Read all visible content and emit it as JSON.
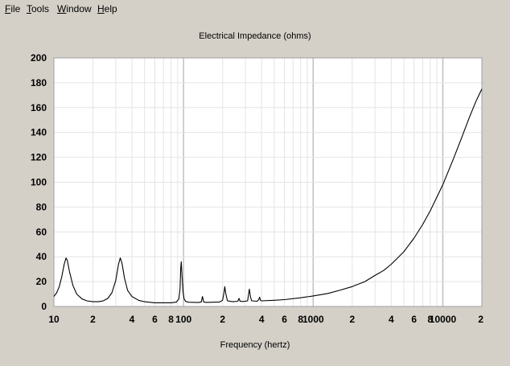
{
  "menu": {
    "file": {
      "first": "F",
      "rest": "ile"
    },
    "tools": {
      "first": "T",
      "rest": "ools"
    },
    "window": {
      "first": "W",
      "rest": "indow"
    },
    "help": {
      "first": "H",
      "rest": "elp"
    }
  },
  "chart_data": {
    "type": "line",
    "title": "Electrical Impedance (ohms)",
    "xlabel": "Frequency (hertz)",
    "ylabel": "",
    "x_scale": "log",
    "xlim": [
      10,
      20000
    ],
    "ylim": [
      0,
      200
    ],
    "grid": true,
    "y_ticks": [
      0,
      20,
      40,
      60,
      80,
      100,
      120,
      140,
      160,
      180,
      200
    ],
    "x_ticks": [
      {
        "value": 10,
        "label": "10"
      },
      {
        "value": 20,
        "label": "2"
      },
      {
        "value": 40,
        "label": "4"
      },
      {
        "value": 60,
        "label": "6"
      },
      {
        "value": 80,
        "label": "8"
      },
      {
        "value": 100,
        "label": "100"
      },
      {
        "value": 200,
        "label": "2"
      },
      {
        "value": 400,
        "label": "4"
      },
      {
        "value": 600,
        "label": "6"
      },
      {
        "value": 800,
        "label": "8"
      },
      {
        "value": 1000,
        "label": "1000"
      },
      {
        "value": 2000,
        "label": "2"
      },
      {
        "value": 4000,
        "label": "4"
      },
      {
        "value": 6000,
        "label": "6"
      },
      {
        "value": 8000,
        "label": "8"
      },
      {
        "value": 10000,
        "label": "10000"
      },
      {
        "value": 20000,
        "label": "2"
      }
    ],
    "series": [
      {
        "color": "#000000",
        "points": [
          [
            10,
            8
          ],
          [
            10.5,
            11
          ],
          [
            11,
            16
          ],
          [
            11.5,
            24
          ],
          [
            12,
            34
          ],
          [
            12.4,
            39
          ],
          [
            12.7,
            37
          ],
          [
            13.2,
            28
          ],
          [
            14,
            17
          ],
          [
            15,
            10
          ],
          [
            16.5,
            6
          ],
          [
            18,
            4.5
          ],
          [
            20,
            3.8
          ],
          [
            22,
            3.8
          ],
          [
            24,
            4.5
          ],
          [
            26,
            6.5
          ],
          [
            28,
            11
          ],
          [
            30,
            21
          ],
          [
            31.5,
            34
          ],
          [
            32.5,
            39
          ],
          [
            33.5,
            35
          ],
          [
            35,
            23
          ],
          [
            37,
            13
          ],
          [
            40,
            8
          ],
          [
            45,
            5
          ],
          [
            50,
            3.8
          ],
          [
            60,
            3
          ],
          [
            70,
            3
          ],
          [
            80,
            3
          ],
          [
            88,
            3.5
          ],
          [
            92,
            6
          ],
          [
            94,
            14
          ],
          [
            95,
            30
          ],
          [
            96,
            36
          ],
          [
            97,
            28
          ],
          [
            99,
            12
          ],
          [
            101,
            6
          ],
          [
            104,
            4
          ],
          [
            110,
            3.4
          ],
          [
            130,
            3.2
          ],
          [
            137,
            3.6
          ],
          [
            140,
            8
          ],
          [
            143,
            3.6
          ],
          [
            150,
            3.3
          ],
          [
            190,
            3.6
          ],
          [
            200,
            5
          ],
          [
            205,
            11
          ],
          [
            208,
            16
          ],
          [
            212,
            10
          ],
          [
            218,
            4.5
          ],
          [
            240,
            3.8
          ],
          [
            262,
            4.2
          ],
          [
            268,
            6.5
          ],
          [
            273,
            4.2
          ],
          [
            290,
            4
          ],
          [
            312,
            4.5
          ],
          [
            318,
            10
          ],
          [
            322,
            14
          ],
          [
            328,
            8
          ],
          [
            335,
            4.5
          ],
          [
            370,
            4.2
          ],
          [
            380,
            5.5
          ],
          [
            386,
            7.5
          ],
          [
            392,
            5
          ],
          [
            400,
            4.5
          ],
          [
            500,
            5
          ],
          [
            600,
            5.5
          ],
          [
            800,
            7
          ],
          [
            1000,
            8.5
          ],
          [
            1300,
            10.5
          ],
          [
            1600,
            13
          ],
          [
            2000,
            16
          ],
          [
            2500,
            20
          ],
          [
            3000,
            25
          ],
          [
            3500,
            29
          ],
          [
            4000,
            34
          ],
          [
            5000,
            44
          ],
          [
            6000,
            55
          ],
          [
            7000,
            66
          ],
          [
            8000,
            77
          ],
          [
            9000,
            88
          ],
          [
            10000,
            98
          ],
          [
            12000,
            118
          ],
          [
            14000,
            136
          ],
          [
            16000,
            152
          ],
          [
            18000,
            165
          ],
          [
            20000,
            175
          ]
        ]
      }
    ]
  }
}
